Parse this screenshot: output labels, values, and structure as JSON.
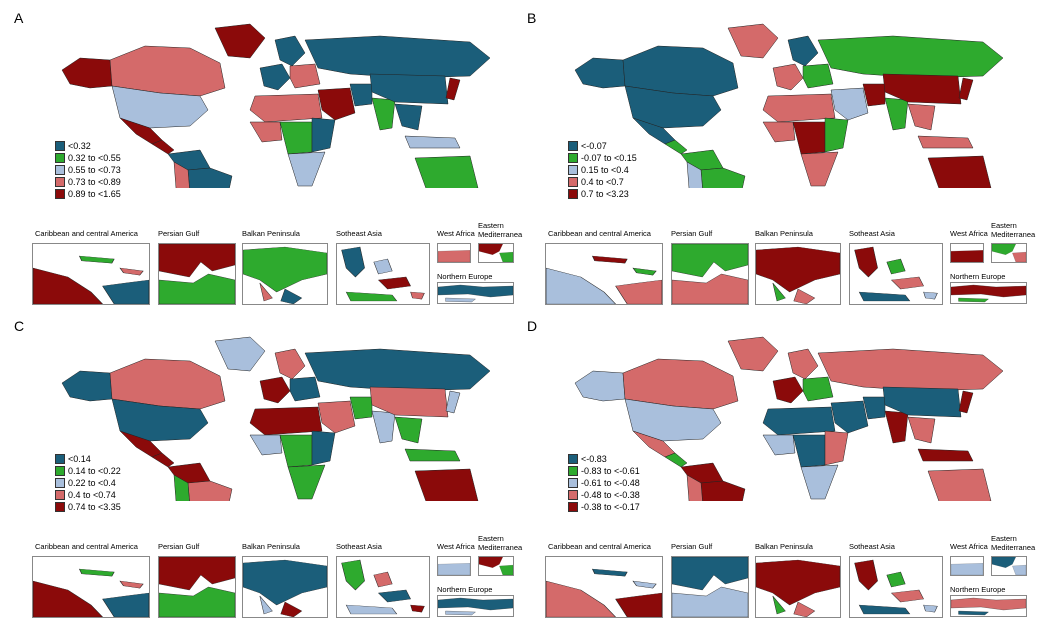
{
  "colors": {
    "c1": "#1b5e7a",
    "c2": "#2eaa2e",
    "c3": "#a9bfdc",
    "c4": "#d46a6a",
    "c5": "#8b0a0a"
  },
  "inset_titles": {
    "caribbean": "Caribbean and central America",
    "gulf": "Persian Gulf",
    "balkan": "Balkan Peninsula",
    "seasia_AB": "Sotheast Asia",
    "westafrica": "West Africa",
    "eastmed": "Eastern Mediterranea",
    "northeurope": "Northern Europe"
  },
  "panels": [
    {
      "label": "A",
      "legend": [
        "<0.32",
        "0.32 to <0.55",
        "0.55 to <0.73",
        "0.73 to <0.89",
        "0.89 to <1.65"
      ],
      "inset_colors": {
        "caribbean": "c5",
        "gulf": "c5",
        "balkan": "c2",
        "seasia": "c1",
        "westafrica": "c4",
        "eastmed": "c5",
        "northeurope": "c1"
      }
    },
    {
      "label": "B",
      "legend": [
        "<-0.07",
        "-0.07 to <0.15",
        "0.15 to <0.4",
        "0.4 to <0.7",
        "0.7 to <3.23"
      ],
      "inset_colors": {
        "caribbean": "c3",
        "gulf": "c2",
        "balkan": "c5",
        "seasia": "c5",
        "westafrica": "c5",
        "eastmed": "c2",
        "northeurope": "c5"
      }
    },
    {
      "label": "C",
      "legend": [
        "<0.14",
        "0.14 to <0.22",
        "0.22 to <0.4",
        "0.4 to <0.74",
        "0.74 to <3.35"
      ],
      "inset_colors": {
        "caribbean": "c5",
        "gulf": "c5",
        "balkan": "c1",
        "seasia": "c2",
        "westafrica": "c3",
        "eastmed": "c5",
        "northeurope": "c1"
      }
    },
    {
      "label": "D",
      "legend": [
        "<-0.83",
        "-0.83 to <-0.61",
        "-0.61 to <-0.48",
        "-0.48 to <-0.38",
        "-0.38 to <-0.17"
      ],
      "inset_colors": {
        "caribbean": "c4",
        "gulf": "c1",
        "balkan": "c5",
        "seasia": "c5",
        "westafrica": "c3",
        "eastmed": "c1",
        "northeurope": "c4"
      }
    }
  ],
  "region_colors": [
    {
      "canada": "c4",
      "usa": "c3",
      "alaska": "c5",
      "greenland": "c5",
      "mexico": "c5",
      "centam": "c5",
      "southam_n": "c1",
      "brazil": "c1",
      "southam_s": "c5",
      "chile": "c4",
      "nafrica": "c4",
      "wafrica": "c4",
      "cafrica": "c2",
      "eafrica": "c1",
      "safrica": "c3",
      "europe_w": "c1",
      "europe_e": "c4",
      "scand": "c1",
      "russia": "c1",
      "mideast": "c5",
      "iran": "c1",
      "india": "c2",
      "china": "c1",
      "seasia": "c1",
      "japan": "c5",
      "indonesia": "c3",
      "australia": "c2",
      "nz": "c1"
    },
    {
      "canada": "c1",
      "usa": "c1",
      "alaska": "c1",
      "greenland": "c4",
      "mexico": "c1",
      "centam": "c2",
      "southam_n": "c2",
      "brazil": "c2",
      "southam_s": "c3",
      "chile": "c3",
      "nafrica": "c4",
      "wafrica": "c4",
      "cafrica": "c5",
      "eafrica": "c2",
      "safrica": "c4",
      "europe_w": "c4",
      "europe_e": "c2",
      "scand": "c1",
      "russia": "c2",
      "mideast": "c3",
      "iran": "c5",
      "india": "c2",
      "china": "c5",
      "seasia": "c4",
      "japan": "c5",
      "indonesia": "c4",
      "australia": "c5",
      "nz": "c3"
    },
    {
      "canada": "c4",
      "usa": "c1",
      "alaska": "c1",
      "greenland": "c3",
      "mexico": "c5",
      "centam": "c5",
      "southam_n": "c5",
      "brazil": "c4",
      "southam_s": "c2",
      "chile": "c2",
      "nafrica": "c5",
      "wafrica": "c3",
      "cafrica": "c2",
      "eafrica": "c1",
      "safrica": "c2",
      "europe_w": "c5",
      "europe_e": "c1",
      "scand": "c4",
      "russia": "c1",
      "mideast": "c4",
      "iran": "c2",
      "india": "c3",
      "china": "c4",
      "seasia": "c2",
      "japan": "c3",
      "indonesia": "c2",
      "australia": "c5",
      "nz": "c1"
    },
    {
      "canada": "c4",
      "usa": "c3",
      "alaska": "c3",
      "greenland": "c4",
      "mexico": "c4",
      "centam": "c2",
      "southam_n": "c5",
      "brazil": "c5",
      "southam_s": "c4",
      "chile": "c4",
      "nafrica": "c1",
      "wafrica": "c3",
      "cafrica": "c1",
      "eafrica": "c4",
      "safrica": "c3",
      "europe_w": "c5",
      "europe_e": "c2",
      "scand": "c4",
      "russia": "c4",
      "mideast": "c1",
      "iran": "c1",
      "india": "c5",
      "china": "c1",
      "seasia": "c4",
      "japan": "c5",
      "indonesia": "c5",
      "australia": "c4",
      "nz": "c5"
    }
  ]
}
